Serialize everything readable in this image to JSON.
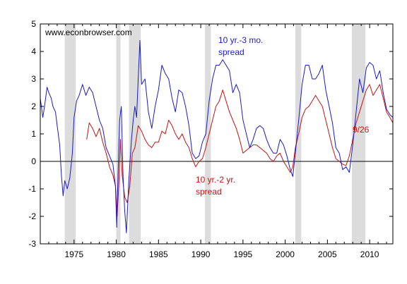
{
  "chart_data": {
    "type": "line",
    "watermark": "www.econbrowser.com",
    "xlim": [
      1971,
      2012.75
    ],
    "ylim": [
      -3,
      5
    ],
    "x_ticks": [
      1975,
      1980,
      1985,
      1990,
      1995,
      2000,
      2005,
      2010
    ],
    "x_tick_labels": [
      "1975",
      "1980",
      "1985",
      "1990",
      "1995",
      "2000",
      "2005",
      "2010"
    ],
    "y_ticks": [
      -3,
      -2,
      -1,
      0,
      1,
      2,
      3,
      4,
      5
    ],
    "y_tick_labels": [
      "-3",
      "-2",
      "-1",
      "0",
      "1",
      "2",
      "3",
      "4",
      "5"
    ],
    "grid": false,
    "zero_line": true,
    "recessions": [
      [
        1973.9,
        1975.2
      ],
      [
        1980.0,
        1980.5
      ],
      [
        1981.5,
        1982.9
      ],
      [
        1990.5,
        1991.2
      ],
      [
        2001.2,
        2001.9
      ],
      [
        2007.9,
        2009.5
      ]
    ],
    "recession_color": "#dcdcdc",
    "annotations": [
      {
        "line1": "10 yr.-3 mo.",
        "line2": "spread",
        "color": "#1a1acc",
        "series": "ten_three_month"
      },
      {
        "line1": "10 yr.-2 yr.",
        "line2": "spread",
        "color": "#cc1111",
        "series": "ten_two_year"
      },
      {
        "line1": "9/26",
        "line2": "",
        "color": "#cc1111",
        "series": "ten_two_year"
      }
    ],
    "series": [
      {
        "key": "ten_three_month",
        "color": "#1a1acc",
        "points": [
          [
            1971.0,
            2.3
          ],
          [
            1971.3,
            1.6
          ],
          [
            1971.5,
            2.0
          ],
          [
            1971.8,
            2.7
          ],
          [
            1972.0,
            2.5
          ],
          [
            1972.3,
            2.3
          ],
          [
            1972.5,
            2.0
          ],
          [
            1972.8,
            1.8
          ],
          [
            1973.0,
            1.3
          ],
          [
            1973.3,
            0.6
          ],
          [
            1973.5,
            -0.5
          ],
          [
            1973.7,
            -1.25
          ],
          [
            1973.9,
            -0.7
          ],
          [
            1974.2,
            -1.0
          ],
          [
            1974.5,
            -0.6
          ],
          [
            1974.8,
            0.3
          ],
          [
            1975.0,
            1.6
          ],
          [
            1975.3,
            2.2
          ],
          [
            1975.6,
            2.4
          ],
          [
            1976.0,
            2.8
          ],
          [
            1976.4,
            2.4
          ],
          [
            1976.8,
            2.7
          ],
          [
            1977.2,
            2.5
          ],
          [
            1977.6,
            2.0
          ],
          [
            1978.0,
            1.5
          ],
          [
            1978.4,
            1.2
          ],
          [
            1978.8,
            0.5
          ],
          [
            1979.2,
            0.2
          ],
          [
            1979.6,
            -0.1
          ],
          [
            1979.9,
            -0.9
          ],
          [
            1980.05,
            -2.4
          ],
          [
            1980.2,
            -0.5
          ],
          [
            1980.4,
            1.5
          ],
          [
            1980.6,
            2.0
          ],
          [
            1980.8,
            -0.5
          ],
          [
            1981.0,
            -1.8
          ],
          [
            1981.2,
            -2.6
          ],
          [
            1981.5,
            -0.6
          ],
          [
            1981.8,
            0.8
          ],
          [
            1982.0,
            1.5
          ],
          [
            1982.2,
            2.0
          ],
          [
            1982.4,
            1.6
          ],
          [
            1982.6,
            3.0
          ],
          [
            1982.8,
            4.4
          ],
          [
            1983.0,
            2.8
          ],
          [
            1983.4,
            3.0
          ],
          [
            1983.8,
            1.8
          ],
          [
            1984.2,
            1.2
          ],
          [
            1984.6,
            2.0
          ],
          [
            1985.0,
            2.6
          ],
          [
            1985.4,
            3.5
          ],
          [
            1985.8,
            3.2
          ],
          [
            1986.2,
            3.0
          ],
          [
            1986.6,
            2.3
          ],
          [
            1987.0,
            1.8
          ],
          [
            1987.4,
            2.6
          ],
          [
            1987.8,
            2.5
          ],
          [
            1988.2,
            2.0
          ],
          [
            1988.6,
            1.3
          ],
          [
            1989.0,
            0.3
          ],
          [
            1989.4,
            0.1
          ],
          [
            1989.8,
            0.2
          ],
          [
            1990.2,
            0.7
          ],
          [
            1990.6,
            1.0
          ],
          [
            1991.0,
            2.2
          ],
          [
            1991.4,
            3.0
          ],
          [
            1991.8,
            3.5
          ],
          [
            1992.2,
            3.5
          ],
          [
            1992.6,
            3.7
          ],
          [
            1993.0,
            3.5
          ],
          [
            1993.4,
            3.3
          ],
          [
            1993.8,
            2.5
          ],
          [
            1994.2,
            2.8
          ],
          [
            1994.6,
            2.5
          ],
          [
            1995.0,
            1.5
          ],
          [
            1995.4,
            1.0
          ],
          [
            1995.8,
            0.5
          ],
          [
            1996.2,
            0.8
          ],
          [
            1996.6,
            1.2
          ],
          [
            1997.0,
            1.3
          ],
          [
            1997.4,
            1.2
          ],
          [
            1997.8,
            0.8
          ],
          [
            1998.2,
            0.5
          ],
          [
            1998.6,
            0.3
          ],
          [
            1999.0,
            0.3
          ],
          [
            1999.4,
            0.8
          ],
          [
            1999.8,
            0.6
          ],
          [
            2000.2,
            0.2
          ],
          [
            2000.6,
            -0.3
          ],
          [
            2000.9,
            -0.55
          ],
          [
            2001.2,
            0.3
          ],
          [
            2001.6,
            1.5
          ],
          [
            2002.0,
            2.8
          ],
          [
            2002.4,
            3.5
          ],
          [
            2002.8,
            3.5
          ],
          [
            2003.2,
            3.0
          ],
          [
            2003.6,
            3.0
          ],
          [
            2004.0,
            3.2
          ],
          [
            2004.4,
            3.5
          ],
          [
            2004.8,
            2.6
          ],
          [
            2005.2,
            2.0
          ],
          [
            2005.6,
            1.4
          ],
          [
            2006.0,
            0.5
          ],
          [
            2006.4,
            0.3
          ],
          [
            2006.8,
            -0.3
          ],
          [
            2007.2,
            -0.2
          ],
          [
            2007.6,
            -0.4
          ],
          [
            2008.0,
            0.6
          ],
          [
            2008.4,
            1.8
          ],
          [
            2008.8,
            3.0
          ],
          [
            2009.2,
            2.5
          ],
          [
            2009.6,
            3.4
          ],
          [
            2010.0,
            3.6
          ],
          [
            2010.4,
            3.5
          ],
          [
            2010.8,
            3.0
          ],
          [
            2011.2,
            3.3
          ],
          [
            2011.6,
            2.5
          ],
          [
            2012.0,
            1.9
          ],
          [
            2012.4,
            1.7
          ],
          [
            2012.75,
            1.6
          ]
        ]
      },
      {
        "key": "ten_two_year",
        "color": "#cc1111",
        "points": [
          [
            1976.5,
            0.8
          ],
          [
            1976.8,
            1.4
          ],
          [
            1977.2,
            1.2
          ],
          [
            1977.6,
            0.9
          ],
          [
            1978.0,
            1.2
          ],
          [
            1978.4,
            0.7
          ],
          [
            1978.8,
            0.3
          ],
          [
            1979.2,
            -0.2
          ],
          [
            1979.6,
            -0.5
          ],
          [
            1979.9,
            -0.9
          ],
          [
            1980.1,
            -2.0
          ],
          [
            1980.3,
            -0.8
          ],
          [
            1980.5,
            0.8
          ],
          [
            1980.7,
            -0.5
          ],
          [
            1981.0,
            -1.3
          ],
          [
            1981.3,
            -1.5
          ],
          [
            1981.6,
            -0.9
          ],
          [
            1981.9,
            0.3
          ],
          [
            1982.2,
            0.5
          ],
          [
            1982.6,
            1.3
          ],
          [
            1983.0,
            1.1
          ],
          [
            1983.4,
            0.8
          ],
          [
            1983.8,
            0.6
          ],
          [
            1984.2,
            0.5
          ],
          [
            1984.6,
            0.7
          ],
          [
            1985.0,
            0.7
          ],
          [
            1985.4,
            1.1
          ],
          [
            1985.8,
            1.0
          ],
          [
            1986.2,
            1.5
          ],
          [
            1986.6,
            1.3
          ],
          [
            1987.0,
            1.0
          ],
          [
            1987.4,
            0.8
          ],
          [
            1987.8,
            1.0
          ],
          [
            1988.2,
            0.7
          ],
          [
            1988.6,
            0.5
          ],
          [
            1989.0,
            0.1
          ],
          [
            1989.4,
            -0.2
          ],
          [
            1989.8,
            0.0
          ],
          [
            1990.2,
            0.1
          ],
          [
            1990.6,
            0.5
          ],
          [
            1991.0,
            1.0
          ],
          [
            1991.4,
            1.5
          ],
          [
            1991.8,
            2.0
          ],
          [
            1992.2,
            2.2
          ],
          [
            1992.6,
            2.6
          ],
          [
            1993.0,
            2.2
          ],
          [
            1993.4,
            1.8
          ],
          [
            1993.8,
            1.5
          ],
          [
            1994.2,
            1.2
          ],
          [
            1994.6,
            0.8
          ],
          [
            1995.0,
            0.3
          ],
          [
            1995.4,
            0.4
          ],
          [
            1995.8,
            0.5
          ],
          [
            1996.2,
            0.6
          ],
          [
            1996.6,
            0.6
          ],
          [
            1997.0,
            0.5
          ],
          [
            1997.4,
            0.4
          ],
          [
            1997.8,
            0.3
          ],
          [
            1998.2,
            0.1
          ],
          [
            1998.6,
            0.0
          ],
          [
            1999.0,
            0.2
          ],
          [
            1999.4,
            0.3
          ],
          [
            1999.8,
            0.0
          ],
          [
            2000.2,
            -0.2
          ],
          [
            2000.6,
            -0.4
          ],
          [
            2000.9,
            -0.2
          ],
          [
            2001.2,
            0.5
          ],
          [
            2001.6,
            1.0
          ],
          [
            2002.0,
            1.6
          ],
          [
            2002.4,
            1.9
          ],
          [
            2002.8,
            2.0
          ],
          [
            2003.2,
            2.2
          ],
          [
            2003.6,
            2.4
          ],
          [
            2004.0,
            2.2
          ],
          [
            2004.4,
            2.0
          ],
          [
            2004.8,
            1.5
          ],
          [
            2005.2,
            1.0
          ],
          [
            2005.6,
            0.5
          ],
          [
            2006.0,
            0.1
          ],
          [
            2006.4,
            0.0
          ],
          [
            2006.8,
            -0.1
          ],
          [
            2007.2,
            -0.15
          ],
          [
            2007.6,
            0.2
          ],
          [
            2008.0,
            0.8
          ],
          [
            2008.4,
            1.4
          ],
          [
            2008.8,
            1.8
          ],
          [
            2009.2,
            2.2
          ],
          [
            2009.6,
            2.6
          ],
          [
            2010.0,
            2.8
          ],
          [
            2010.4,
            2.4
          ],
          [
            2010.8,
            2.6
          ],
          [
            2011.2,
            2.8
          ],
          [
            2011.6,
            2.3
          ],
          [
            2012.0,
            1.8
          ],
          [
            2012.4,
            1.6
          ],
          [
            2012.75,
            1.4
          ]
        ]
      }
    ]
  }
}
